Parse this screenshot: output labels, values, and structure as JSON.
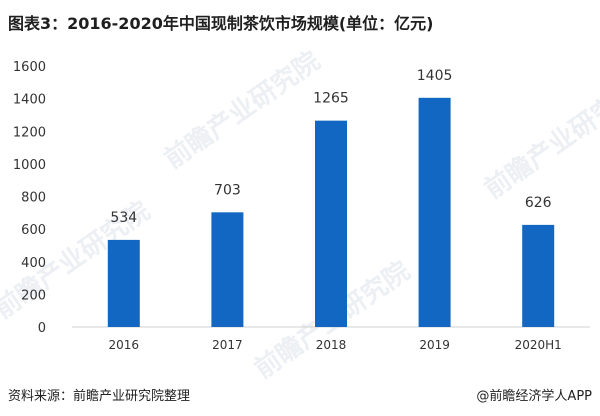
{
  "title": "图表3：2016-2020年中国现制茶饮市场规模(单位：亿元)",
  "source": "资料来源：前瞻产业研究院整理",
  "credit": "@前瞻经济学人APP",
  "watermark": "前瞻产业研究院",
  "colors": {
    "bar": "#1167c1",
    "axis": "#d0d0d0",
    "text": "#333333"
  },
  "chart_data": {
    "type": "bar",
    "categories": [
      "2016",
      "2017",
      "2018",
      "2019",
      "2020H1"
    ],
    "values": [
      534,
      703,
      1265,
      1405,
      626
    ],
    "ylim": [
      0,
      1600
    ],
    "yticks": [
      0,
      200,
      400,
      600,
      800,
      1000,
      1200,
      1400,
      1600
    ],
    "title": "图表3：2016-2020年中国现制茶饮市场规模(单位：亿元)",
    "xlabel": "",
    "ylabel": "",
    "grid": false,
    "data_labels": true
  }
}
